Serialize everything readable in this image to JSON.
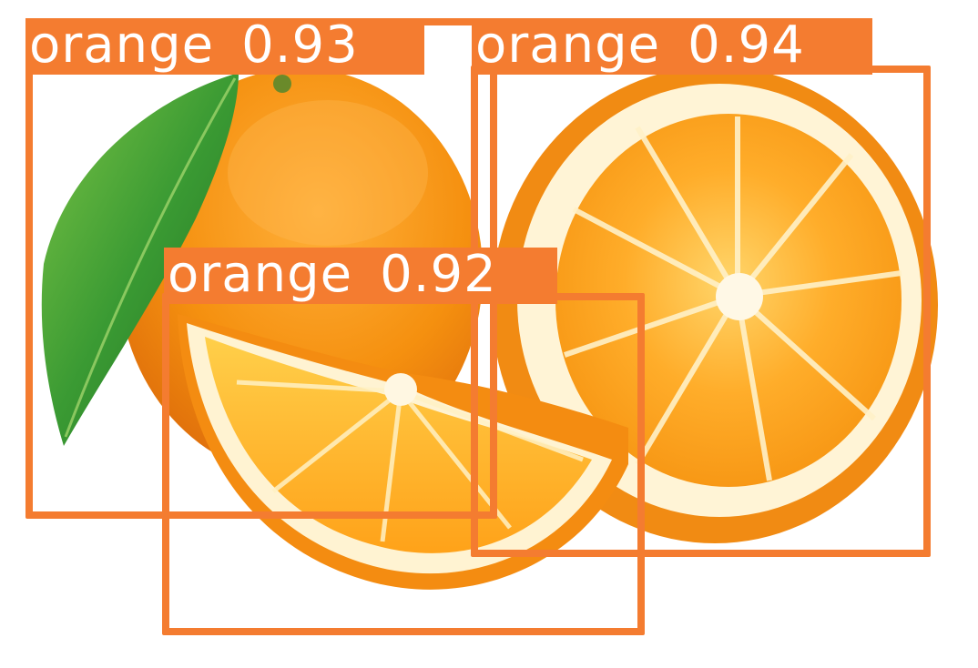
{
  "detections": [
    {
      "class": "orange",
      "score": "0.93"
    },
    {
      "class": "orange",
      "score": "0.94"
    },
    {
      "class": "orange",
      "score": "0.92"
    }
  ],
  "colors": {
    "box": "#f47c30",
    "label_text": "#ffffff",
    "peel_outer": "#f08a12",
    "peel_light": "#ffae33",
    "pith": "#fff6dc",
    "flesh": "#ffa21c",
    "flesh_light": "#ffc44a",
    "leaf": "#2f8a2c",
    "leaf_light": "#6dbb3c",
    "background": "#ffffff"
  }
}
